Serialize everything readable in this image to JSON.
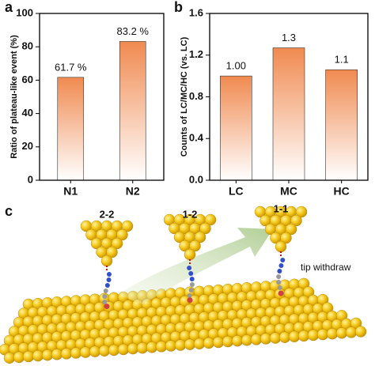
{
  "chart_data": [
    {
      "type": "bar",
      "panel": "a",
      "ylabel": "Ratio of plateau-like event (%)",
      "categories": [
        "N1",
        "N2"
      ],
      "values": [
        61.7,
        83.2
      ],
      "value_labels": [
        "61.7 %",
        "83.2 %"
      ],
      "color": "#f08a50",
      "ylim": [
        0,
        100
      ],
      "yticks": [
        0,
        20,
        40,
        60,
        80,
        100
      ]
    },
    {
      "type": "bar",
      "panel": "b",
      "ylabel": "Counts of LC/MC/HC (vs. LC)",
      "categories": [
        "LC",
        "MC",
        "HC"
      ],
      "values": [
        1,
        1.27,
        1.06
      ],
      "value_labels": [
        "1.00",
        "1.3",
        "1.1"
      ],
      "color": "#f08a50",
      "ylim": [
        0,
        1.6
      ],
      "yticks": [
        {
          "value": 0,
          "label": "0.0"
        },
        0.4,
        0.8,
        1.2,
        1.6
      ]
    }
  ],
  "illustration": {
    "panel": "c",
    "tip_labels": [
      "2-2",
      "1-2",
      "1-1"
    ],
    "annotation": "tip withdraw"
  }
}
